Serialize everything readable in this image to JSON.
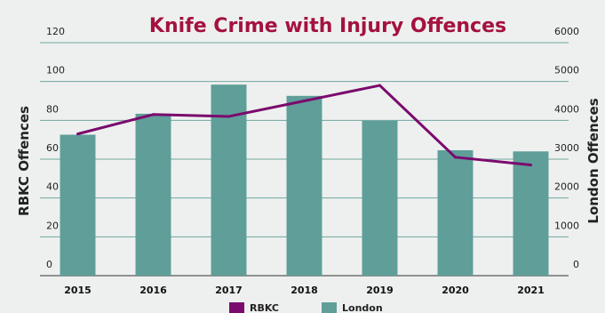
{
  "chart_data": {
    "type": "bar",
    "title": "Knife Crime with Injury Offences",
    "categories": [
      "2015",
      "2016",
      "2017",
      "2018",
      "2019",
      "2020",
      "2021"
    ],
    "series": [
      {
        "name": "London",
        "type": "bar",
        "axis": "right",
        "color": "#5f9e99",
        "values": [
          3630,
          4170,
          4920,
          4630,
          3990,
          3230,
          3200
        ]
      },
      {
        "name": "RBKC",
        "type": "line",
        "axis": "left",
        "color": "#7b0a6e",
        "values": [
          73,
          83,
          82,
          90,
          98,
          61,
          57
        ]
      }
    ],
    "y_left": {
      "label": "RBKC Offences",
      "ylim": [
        0,
        120
      ],
      "ticks": [
        "0",
        "20",
        "40",
        "60",
        "80",
        "100",
        "120"
      ]
    },
    "y_right": {
      "label": "London Offences",
      "ylim": [
        0,
        6000
      ],
      "ticks": [
        "0",
        "1000",
        "2000",
        "3000",
        "4000",
        "5000",
        "6000"
      ]
    },
    "grid": true,
    "legend_position": "bottom-center",
    "colors": {
      "title": "#a4123f",
      "grid": "#6fa79f",
      "baseline": "#333333"
    }
  }
}
